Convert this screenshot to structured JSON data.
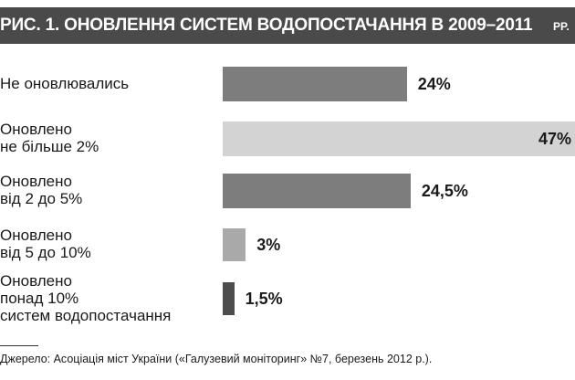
{
  "title": "РИС. 1. ОНОВЛЕННЯ СИСТЕМ ВОДОПОСТАЧАННЯ В 2009–2011",
  "title_tail": "PP.",
  "chart_data": {
    "type": "bar",
    "orientation": "horizontal",
    "categories": [
      "Не оновлювались",
      "Оновлено\nне більше 2%",
      "Оновлено\nвід 2 до 5%",
      "Оновлено\nвід 5 до 10%",
      "Оновлено\nпонад 10%\nсистем водопостачання"
    ],
    "values": [
      24,
      47,
      24.5,
      3,
      1.5
    ],
    "value_labels": [
      "24%",
      "47%",
      "24,5%",
      "3%",
      "1,5%"
    ],
    "colors": [
      "#7d7d7d",
      "#d3d3d3",
      "#7d7d7d",
      "#a9a9a9",
      "#4d4d4d"
    ],
    "unit": "%"
  },
  "source": "Джерело: Асоціація міст України («Галузевий моніторинг» №7, березень 2012 р.)."
}
